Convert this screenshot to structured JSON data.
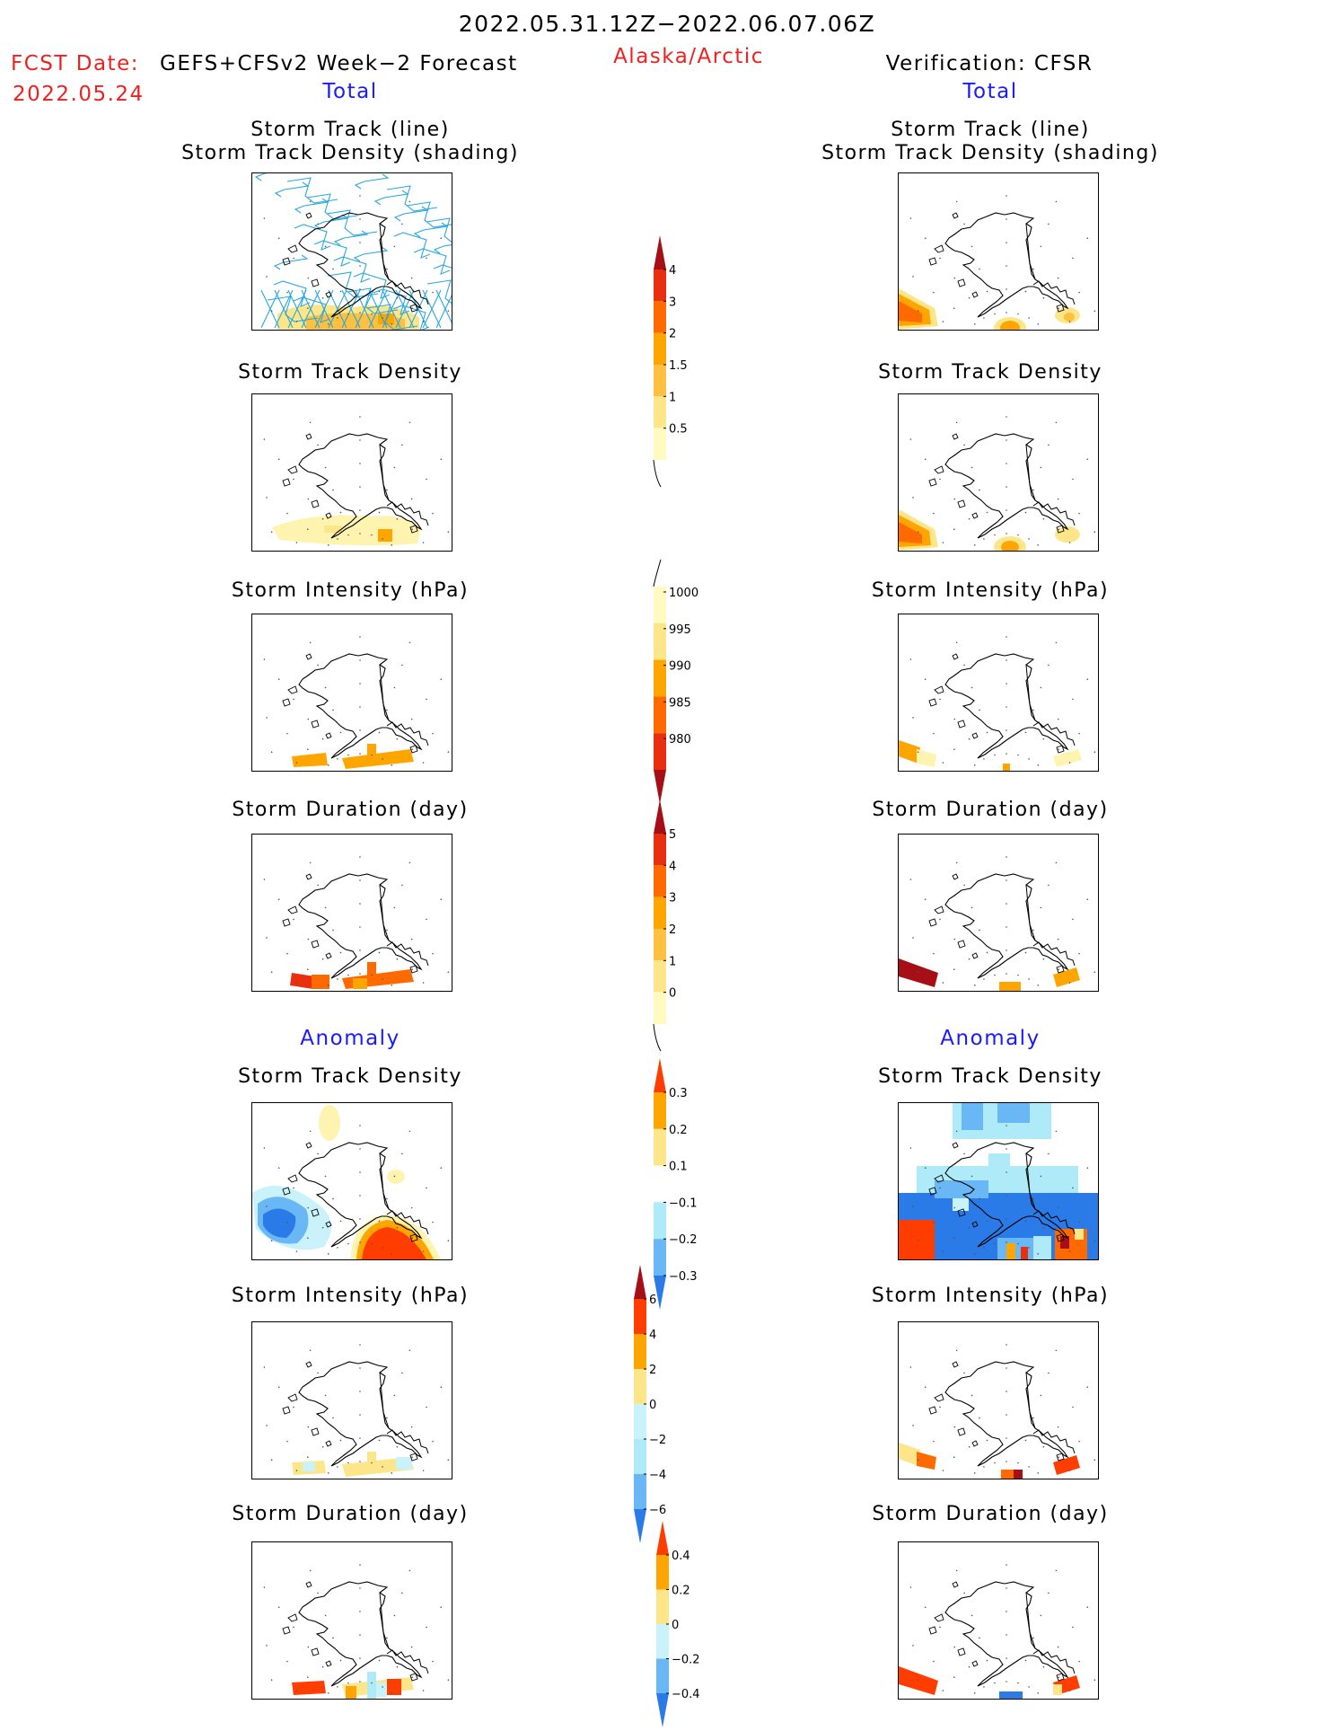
{
  "header": {
    "period": "2022.05.31.12Z−2022.06.07.06Z",
    "fcst_label": "FCST Date:",
    "fcst_model": "GEFS+CFSv2 Week−2 Forecast",
    "fcst_date": "2022.05.24",
    "region": "Alaska/Arctic",
    "verification": "Verification: CFSR",
    "total_left": "Total",
    "total_right": "Total",
    "anomaly_left": "Anomaly",
    "anomaly_right": "Anomaly"
  },
  "titles": {
    "track_line": "Storm Track (line)",
    "track_shading": "Storm Track Density (shading)",
    "density": "Storm Track Density",
    "intensity": "Storm Intensity (hPa)",
    "duration": "Storm Duration (day)"
  },
  "colorbars": {
    "density": {
      "labels": [
        "4",
        "3",
        "2",
        "1.5",
        "1",
        "0.5"
      ],
      "colors": [
        "#a50f15",
        "#e83010",
        "#ff6a00",
        "#ffa500",
        "#fdc040",
        "#fde68a",
        "#fffac0"
      ]
    },
    "intensity": {
      "labels": [
        "1000",
        "995",
        "990",
        "985",
        "980"
      ],
      "colors": [
        "#fffac0",
        "#fde68a",
        "#ffa500",
        "#ff6a00",
        "#e83010",
        "#a50f15"
      ]
    },
    "duration": {
      "labels": [
        "5",
        "4",
        "3",
        "2",
        "1",
        "0"
      ],
      "colors": [
        "#a50f15",
        "#e83010",
        "#ff6a00",
        "#ffa500",
        "#fdc040",
        "#fde68a",
        "#fffac0"
      ]
    },
    "anom_density": {
      "labels": [
        "0.3",
        "0.2",
        "0.1",
        "−0.1",
        "−0.2",
        "−0.3"
      ],
      "colors": [
        "#ff3d00",
        "#ffa500",
        "#fde68a",
        "#ffffff",
        "#aeeaf7",
        "#6ab7f5",
        "#2a7ae8"
      ]
    },
    "anom_intensity": {
      "labels": [
        "6",
        "4",
        "2",
        "0",
        "−2",
        "−4",
        "−6"
      ],
      "colors": [
        "#a50f15",
        "#ff3d00",
        "#ffa500",
        "#fde68a",
        "#c9f2fa",
        "#aeeaf7",
        "#6ab7f5",
        "#2a7ae8"
      ]
    },
    "anom_duration": {
      "labels": [
        "0.4",
        "0.2",
        "0",
        "−0.2",
        "−0.4"
      ],
      "colors": [
        "#ff3d00",
        "#ffa500",
        "#fde68a",
        "#c9f2fa",
        "#6ab7f5",
        "#2a7ae8"
      ]
    }
  }
}
